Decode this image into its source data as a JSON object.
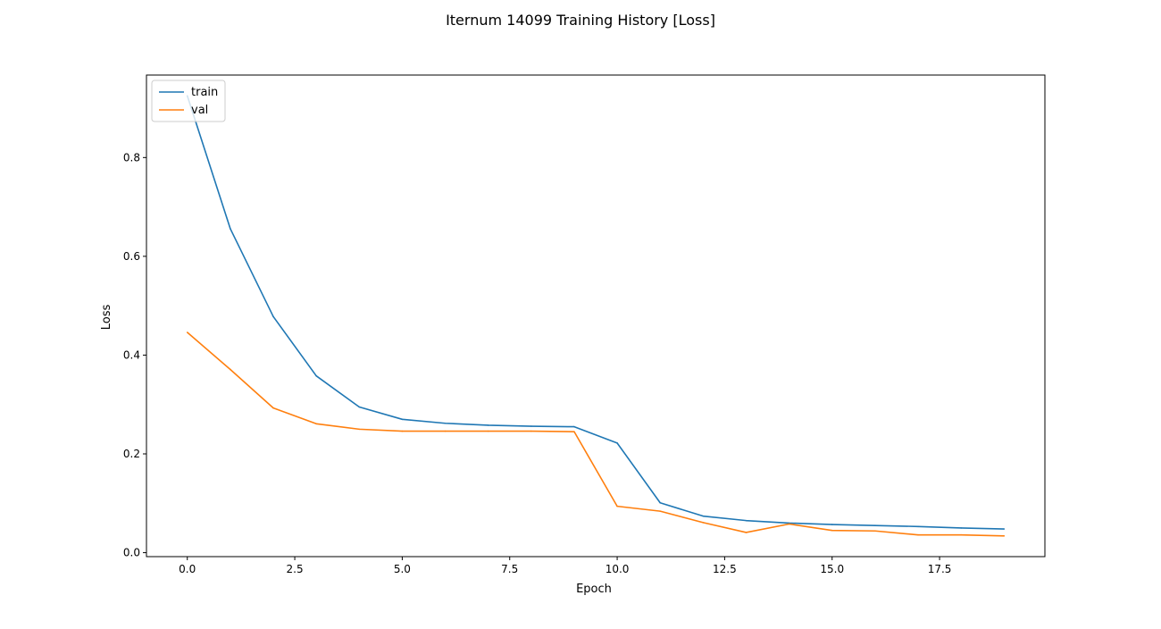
{
  "figure": {
    "title": "Iternum 14099 Training History [Loss]"
  },
  "chart_data": {
    "type": "line",
    "title": "Iternum 14099 Training History [Loss]",
    "xlabel": "Epoch",
    "ylabel": "Loss",
    "xlim": [
      -0.95,
      19.95
    ],
    "ylim": [
      -0.008,
      0.967
    ],
    "x_ticks": [
      0.0,
      2.5,
      5.0,
      7.5,
      10.0,
      12.5,
      15.0,
      17.5
    ],
    "x_tick_labels": [
      "0.0",
      "2.5",
      "5.0",
      "7.5",
      "10.0",
      "12.5",
      "15.0",
      "17.5"
    ],
    "y_ticks": [
      0.0,
      0.2,
      0.4,
      0.6,
      0.8
    ],
    "y_tick_labels": [
      "0.0",
      "0.2",
      "0.4",
      "0.6",
      "0.8"
    ],
    "grid": false,
    "legend_position": "upper left",
    "x": [
      0,
      1,
      2,
      3,
      4,
      5,
      6,
      7,
      8,
      9,
      10,
      11,
      12,
      13,
      14,
      15,
      16,
      17,
      18,
      19
    ],
    "series": [
      {
        "name": "train",
        "color": "#1f77b4",
        "values": [
          0.925,
          0.656,
          0.478,
          0.358,
          0.295,
          0.27,
          0.262,
          0.258,
          0.256,
          0.255,
          0.222,
          0.101,
          0.074,
          0.065,
          0.06,
          0.057,
          0.055,
          0.053,
          0.05,
          0.048
        ]
      },
      {
        "name": "val",
        "color": "#ff7f0e",
        "values": [
          0.446,
          0.371,
          0.293,
          0.261,
          0.25,
          0.246,
          0.246,
          0.246,
          0.246,
          0.245,
          0.094,
          0.084,
          0.061,
          0.041,
          0.058,
          0.045,
          0.044,
          0.036,
          0.036,
          0.034
        ]
      }
    ]
  }
}
